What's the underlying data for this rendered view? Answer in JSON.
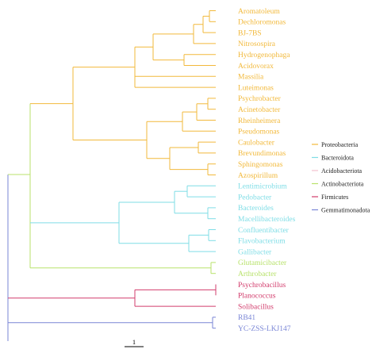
{
  "phyla": [
    {
      "name": "Proteobacteria",
      "color": "#f2b93b"
    },
    {
      "name": "Bacteroidota",
      "color": "#7fdde6"
    },
    {
      "name": "Acidobacteriota",
      "color": "#f2c2cf"
    },
    {
      "name": "Actinobacteriota",
      "color": "#b8e26b"
    },
    {
      "name": "Firmicutes",
      "color": "#d23c6c"
    },
    {
      "name": "Gemmatimonadota",
      "color": "#7a86d6"
    }
  ],
  "leaves": [
    "Aromatoleum",
    "Dechloromonas",
    "BJ-7BS",
    "Nitrosospira",
    "Hydrogenophaga",
    "Acidovorax",
    "Massilia",
    "Luteimonas",
    "Psychrobacter",
    "Acinetobacter",
    "Rheinheimera",
    "Pseudomonas",
    "Caulobacter",
    "Brevundimonas",
    "Sphingomonas",
    "Azospirillum",
    "Lentimicrobium",
    "Pedobacter",
    "Bacteroides",
    "Macellibacteroides",
    "Confluentibacter",
    "Flavobacterium",
    "Gallibacter",
    "Glutamicibacter",
    "Arthrobacter",
    "Psychrobacillus",
    "Planococcus",
    "Solibacillus",
    "RB41",
    "YC-ZSS-LKJ147"
  ],
  "scale_bar": {
    "label": "1"
  }
}
